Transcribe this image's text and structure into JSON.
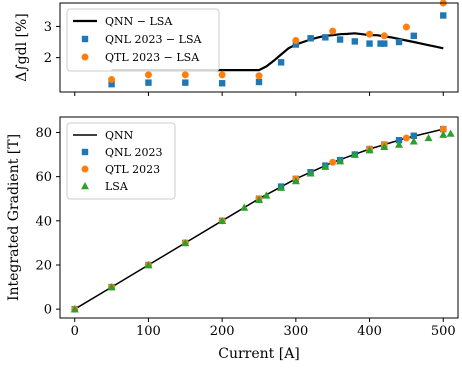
{
  "chart_data": [
    {
      "type": "line",
      "ylabel": "Δ∫gdl [%]",
      "xlim": [
        -20,
        520
      ],
      "ylim": [
        0.9,
        3.75
      ],
      "yticks": [
        "2",
        "3"
      ],
      "grid": false,
      "legend_placement": "top-left",
      "series": [
        {
          "name": "QNN − LSA",
          "kind": "line",
          "color": "#000000",
          "x": [
            50,
            100,
            150,
            200,
            220,
            240,
            250,
            260,
            270,
            280,
            290,
            300,
            310,
            320,
            330,
            340,
            350,
            360,
            370,
            380,
            390,
            400,
            410,
            420,
            430,
            440,
            450,
            460,
            470,
            480,
            490,
            500
          ],
          "y": [
            1.6,
            1.6,
            1.6,
            1.6,
            1.6,
            1.6,
            1.6,
            1.72,
            1.9,
            2.1,
            2.3,
            2.42,
            2.5,
            2.58,
            2.65,
            2.7,
            2.72,
            2.75,
            2.76,
            2.78,
            2.75,
            2.72,
            2.72,
            2.68,
            2.65,
            2.6,
            2.55,
            2.5,
            2.45,
            2.4,
            2.35,
            2.3
          ]
        },
        {
          "name": "QNL 2023 − LSA",
          "kind": "scatter-square",
          "color": "#1f77b4",
          "x": [
            50,
            100,
            150,
            200,
            250,
            280,
            300,
            320,
            340,
            360,
            380,
            400,
            415,
            420,
            440,
            460,
            500
          ],
          "y": [
            1.15,
            1.2,
            1.2,
            1.18,
            1.22,
            1.85,
            2.42,
            2.62,
            2.65,
            2.58,
            2.52,
            2.45,
            2.45,
            2.45,
            2.5,
            2.7,
            3.35
          ]
        },
        {
          "name": "QTL 2023 − LSA",
          "kind": "scatter-circle",
          "color": "#ff7f0e",
          "x": [
            50,
            100,
            150,
            200,
            250,
            300,
            350,
            400,
            420,
            450,
            500
          ],
          "y": [
            1.3,
            1.45,
            1.45,
            1.45,
            1.42,
            2.55,
            2.85,
            2.75,
            2.7,
            2.98,
            3.75
          ]
        }
      ]
    },
    {
      "type": "line",
      "xlabel": "Current [A]",
      "ylabel": "Integrated Gradient [T]",
      "xlim": [
        -20,
        520
      ],
      "ylim": [
        -4,
        87
      ],
      "xticks": [
        "0",
        "100",
        "200",
        "300",
        "400",
        "500"
      ],
      "yticks": [
        "0",
        "20",
        "40",
        "60",
        "80"
      ],
      "grid": false,
      "legend_placement": "top-left",
      "series": [
        {
          "name": "QNN",
          "kind": "line",
          "color": "#000000",
          "x": [
            0,
            50,
            100,
            150,
            200,
            250,
            300,
            350,
            400,
            450,
            500
          ],
          "y": [
            0,
            10,
            20,
            30,
            40,
            50,
            59,
            66.5,
            72.5,
            77.5,
            81.5
          ]
        },
        {
          "name": "QNL 2023",
          "kind": "scatter-square",
          "color": "#1f77b4",
          "x": [
            0,
            50,
            100,
            150,
            200,
            250,
            280,
            300,
            320,
            340,
            360,
            380,
            400,
            420,
            440,
            460,
            500
          ],
          "y": [
            0,
            10,
            20,
            30,
            40,
            50,
            55.5,
            59,
            62,
            65,
            67.5,
            70,
            72.5,
            74.5,
            76.5,
            78.5,
            81.5
          ]
        },
        {
          "name": "QTL 2023",
          "kind": "scatter-circle",
          "color": "#ff7f0e",
          "x": [
            0,
            50,
            100,
            150,
            200,
            250,
            300,
            350,
            400,
            420,
            450,
            500
          ],
          "y": [
            0,
            10,
            20,
            30,
            40,
            50,
            59,
            66.5,
            72.5,
            74.5,
            77.5,
            81.5
          ]
        },
        {
          "name": "LSA",
          "kind": "scatter-triangle",
          "color": "#2ca02c",
          "x": [
            0,
            50,
            100,
            150,
            200,
            230,
            250,
            260,
            280,
            300,
            320,
            340,
            360,
            380,
            400,
            420,
            440,
            460,
            480,
            500,
            510
          ],
          "y": [
            0,
            10,
            20,
            30,
            40,
            46,
            49.5,
            51.5,
            55,
            58,
            61.5,
            64.5,
            67,
            70,
            72,
            73.5,
            74.5,
            76,
            77.5,
            79,
            79.5
          ]
        }
      ]
    }
  ]
}
